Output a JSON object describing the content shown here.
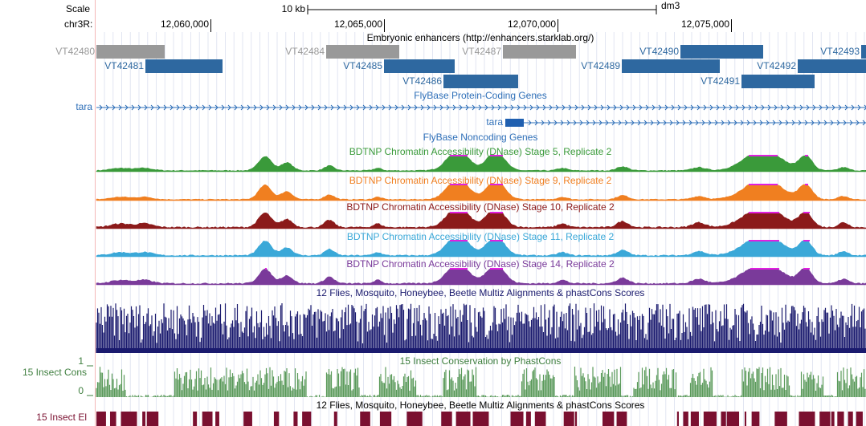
{
  "ruler": {
    "scale": "Scale",
    "scale_size": "10 kb",
    "assembly": "dm3",
    "chrom": "chr3R:",
    "positions": [
      "12,060,000",
      "12,065,000",
      "12,070,000",
      "12,075,000"
    ]
  },
  "enhancers": {
    "title": "Embryonic enhancers (http://enhancers.starklab.org/)",
    "items": [
      "VT42480",
      "VT42484",
      "VT42487",
      "VT42490",
      "VT42493",
      "VT42481",
      "VT42485",
      "VT42489",
      "VT42492",
      "VT42486",
      "VT42491"
    ]
  },
  "protein_genes": {
    "title": "FlyBase Protein-Coding Genes",
    "genes": [
      "tara",
      "tara"
    ]
  },
  "noncoding_genes": {
    "title": "FlyBase Noncoding Genes"
  },
  "dnase": [
    {
      "title": "BDTNP Chromatin Accessibility (DNase) Stage 5, Replicate 2"
    },
    {
      "title": "BDTNP Chromatin Accessibility (DNase) Stage 9, Replicate 2"
    },
    {
      "title": "BDTNP Chromatin Accessibility (DNase) Stage 10, Replicate 2"
    },
    {
      "title": "BDTNP Chromatin Accessibility (DNase) Stage 11, Replicate 2"
    },
    {
      "title": "BDTNP Chromatin Accessibility (DNase) Stage 14, Replicate 2"
    }
  ],
  "multiz": {
    "title": "12 Flies, Mosquito, Honeybee, Beetle Multiz Alignments & phastCons Scores"
  },
  "cons": {
    "label": "15 Insect Cons",
    "title": "15 Insect Conservation by PhastCons",
    "axis_max": 1,
    "axis_min": 0
  },
  "elements": {
    "label": "15 Insect El",
    "title": "12 Flies, Mosquito, Honeybee, Beetle Multiz Alignments & phastCons Scores"
  }
}
